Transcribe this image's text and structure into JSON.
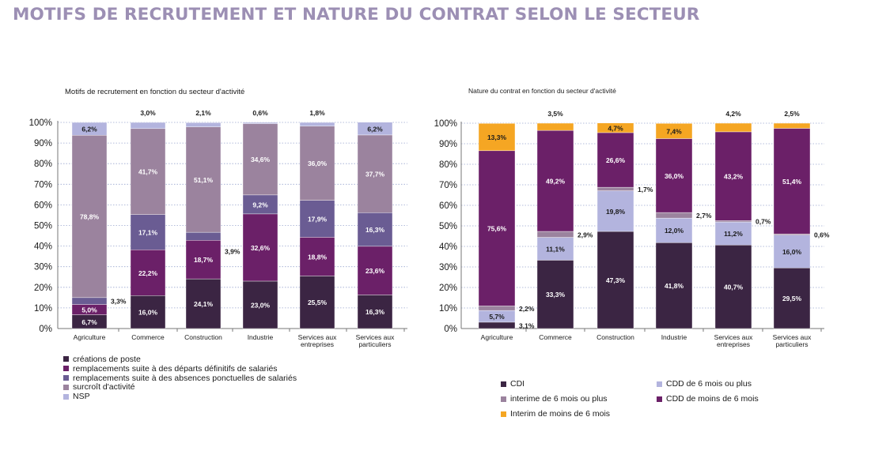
{
  "title": "MOTIFS DE RECRUTEMENT ET NATURE DU CONTRAT SELON LE SECTEUR",
  "chart_data": [
    {
      "type": "bar",
      "stacked": true,
      "title": "Motifs de recrutement en fonction du secteur d'activité",
      "ylim": [
        0,
        100
      ],
      "yticks": [
        "0%",
        "10%",
        "20%",
        "30%",
        "40%",
        "50%",
        "60%",
        "70%",
        "80%",
        "90%",
        "100%"
      ],
      "grid": true,
      "legend_position": "bottom-left",
      "categories": [
        "Agriculture",
        "Commerce",
        "Construction",
        "Industrie",
        "Services aux entreprises",
        "Services aux particuliers"
      ],
      "series": [
        {
          "name": "créations de poste",
          "color": "#3b2543",
          "values": [
            6.7,
            16.0,
            24.1,
            23.0,
            25.5,
            16.3
          ],
          "labels": [
            "6,7%",
            "16,0%",
            "24,1%",
            "23,0%",
            "25,5%",
            "16,3%"
          ]
        },
        {
          "name": "remplacements suite à des départs définitifs de salariés",
          "color": "#6b2068",
          "values": [
            5.0,
            22.2,
            18.7,
            32.6,
            18.8,
            23.6
          ],
          "labels": [
            "5,0%",
            "22,2%",
            "18,7%",
            "32,6%",
            "18,8%",
            "23,6%"
          ]
        },
        {
          "name": "remplacements suite à des absences ponctuelles de salariés",
          "color": "#6a5c93",
          "values": [
            3.3,
            17.1,
            3.9,
            9.2,
            17.9,
            16.3
          ],
          "labels": [
            "3,3%",
            "17,1%",
            "3,9%",
            "9,2%",
            "17,9%",
            "16,3%"
          ]
        },
        {
          "name": "surcroît d'activité",
          "color": "#9b839e",
          "values": [
            78.8,
            41.7,
            51.1,
            34.6,
            36.0,
            37.7
          ],
          "labels": [
            "78,8%",
            "41,7%",
            "51,1%",
            "34,6%",
            "36,0%",
            "37,7%"
          ]
        },
        {
          "name": "NSP",
          "color": "#b3b4de",
          "values": [
            6.2,
            3.0,
            2.1,
            0.6,
            1.8,
            6.2
          ],
          "labels": [
            "6,2%",
            "3,0%",
            "2,1%",
            "0,6%",
            "1,8%",
            "6,2%"
          ]
        }
      ]
    },
    {
      "type": "bar",
      "stacked": true,
      "title": "Nature du contrat en fonction du secteur d'activité",
      "ylim": [
        0,
        100
      ],
      "yticks": [
        "0%",
        "10%",
        "20%",
        "30%",
        "40%",
        "50%",
        "60%",
        "70%",
        "80%",
        "90%",
        "100%"
      ],
      "grid": true,
      "legend_position": "bottom",
      "categories": [
        "Agriculture",
        "Commerce",
        "Construction",
        "Industrie",
        "Services aux entreprises",
        "Services aux particuliers"
      ],
      "series": [
        {
          "name": "CDI",
          "color": "#3b2543",
          "values": [
            3.1,
            33.3,
            47.3,
            41.8,
            40.7,
            29.5
          ],
          "labels": [
            "3,1%",
            "33,3%",
            "47,3%",
            "41,8%",
            "40,7%",
            "29,5%"
          ]
        },
        {
          "name": "CDD de 6 mois ou plus",
          "color": "#b3b4de",
          "values": [
            5.7,
            11.1,
            19.8,
            12.0,
            11.2,
            16.0
          ],
          "labels": [
            "5,7%",
            "11,1%",
            "19,8%",
            "12,0%",
            "11,2%",
            "16,0%"
          ]
        },
        {
          "name": "interime de 6 mois ou plus",
          "color": "#9b839e",
          "values": [
            2.2,
            2.9,
            1.7,
            2.7,
            0.7,
            0.6
          ],
          "labels": [
            "2,2%",
            "2,9%",
            "1,7%",
            "2,7%",
            "0,7%",
            "0,6%"
          ]
        },
        {
          "name": "CDD de moins de 6 mois",
          "color": "#6b2068",
          "values": [
            75.6,
            49.2,
            26.6,
            36.0,
            43.2,
            51.4
          ],
          "labels": [
            "75,6%",
            "49,2%",
            "26,6%",
            "36,0%",
            "43,2%",
            "51,4%"
          ]
        },
        {
          "name": "Interim de moins de 6 mois",
          "color": "#f5a623",
          "values": [
            13.3,
            3.5,
            4.7,
            7.4,
            4.2,
            2.5
          ],
          "labels": [
            "13,3%",
            "3,5%",
            "4,7%",
            "7,4%",
            "4,2%",
            "2,5%"
          ]
        }
      ]
    }
  ]
}
